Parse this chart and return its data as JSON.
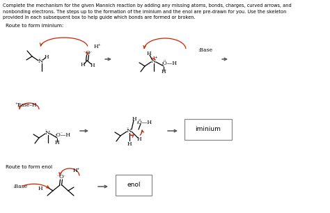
{
  "bg_color": "#ffffff",
  "text_color": "#000000",
  "red_color": "#cc2200",
  "gray_color": "#555555",
  "box_color": "#888888",
  "header": "Complete the mechanism for the given Mannich reaction by adding any missing atoms, bonds, charges, curved arrows, and\nnonbonding electrons. The steps up to the formation of the iminium and the enol are pre-drawn for you. Use the skeleton\nprovided in each subsequent box to help guide which bonds are formed or broken.",
  "route1_label": "Route to form iminium:",
  "route2_label": "Route to form enol",
  "iminium_label": "iminium",
  "enol_label": "enol"
}
